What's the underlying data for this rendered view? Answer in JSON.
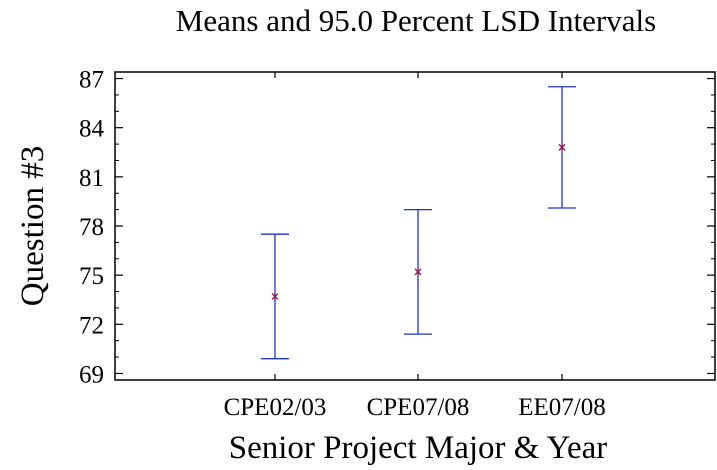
{
  "chart_data": {
    "type": "errorbar",
    "title": "Means and 95.0 Percent LSD Intervals",
    "xlabel": "Senior Project Major & Year",
    "ylabel": "Question #3",
    "categories": [
      "CPE02/03",
      "CPE07/08",
      "EE07/08"
    ],
    "means": [
      73.7,
      75.2,
      82.8
    ],
    "lower": [
      69.9,
      71.4,
      79.1
    ],
    "upper": [
      77.5,
      79.0,
      86.5
    ],
    "ylim": [
      68.6,
      87.4
    ],
    "yticks": [
      69,
      72,
      75,
      78,
      81,
      84,
      87
    ],
    "grid": false,
    "colors": {
      "interval": "#2233cc",
      "mean_marker": "#8b1a4a",
      "frame": "#000000"
    }
  }
}
